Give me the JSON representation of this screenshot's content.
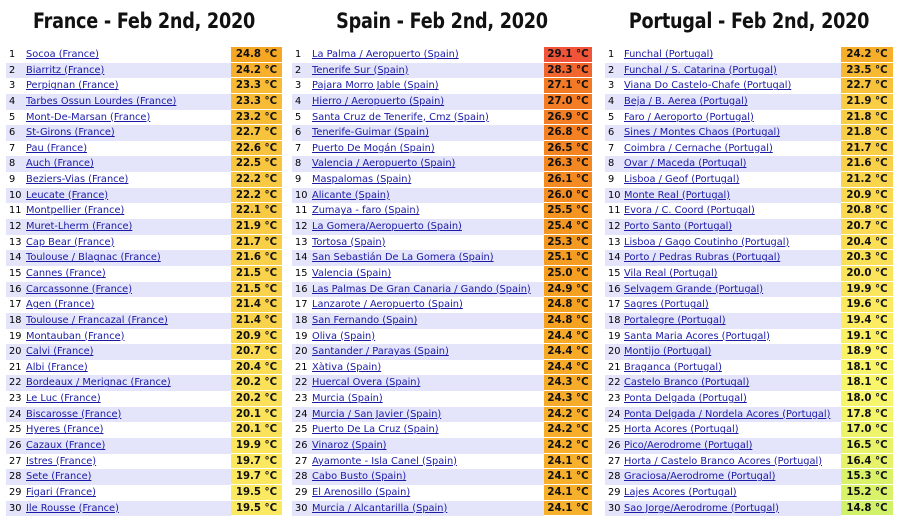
{
  "panels": [
    {
      "title": "France - Feb 2nd, 2020",
      "rows": [
        {
          "rank": "1",
          "name": "Socoa (France)",
          "temp": "24.8 °C",
          "color": "#f5a623"
        },
        {
          "rank": "2",
          "name": "Biarritz (France)",
          "temp": "24.2 °C",
          "color": "#f6b02c"
        },
        {
          "rank": "3",
          "name": "Perpignan (France)",
          "temp": "23.3 °C",
          "color": "#f7bb35"
        },
        {
          "rank": "4",
          "name": "Tarbes Ossun Lourdes (France)",
          "temp": "23.3 °C",
          "color": "#f7bb35"
        },
        {
          "rank": "5",
          "name": "Mont-De-Marsan (France)",
          "temp": "23.2 °C",
          "color": "#f7bc36"
        },
        {
          "rank": "6",
          "name": "St-Girons (France)",
          "temp": "22.7 °C",
          "color": "#f8c33c"
        },
        {
          "rank": "7",
          "name": "Pau (France)",
          "temp": "22.6 °C",
          "color": "#f8c43d"
        },
        {
          "rank": "8",
          "name": "Auch (France)",
          "temp": "22.5 °C",
          "color": "#f8c53e"
        },
        {
          "rank": "9",
          "name": "Beziers-Vias (France)",
          "temp": "22.2 °C",
          "color": "#f8c942"
        },
        {
          "rank": "10",
          "name": "Leucate (France)",
          "temp": "22.2 °C",
          "color": "#f8c942"
        },
        {
          "rank": "11",
          "name": "Montpellier (France)",
          "temp": "22.1 °C",
          "color": "#f8ca43"
        },
        {
          "rank": "12",
          "name": "Muret-Lherm (France)",
          "temp": "21.9 °C",
          "color": "#f9cd45"
        },
        {
          "rank": "13",
          "name": "Cap Bear (France)",
          "temp": "21.7 °C",
          "color": "#f9cf48"
        },
        {
          "rank": "14",
          "name": "Toulouse / Blagnac (France)",
          "temp": "21.6 °C",
          "color": "#f9d049"
        },
        {
          "rank": "15",
          "name": "Cannes (France)",
          "temp": "21.5 °C",
          "color": "#f9d14a"
        },
        {
          "rank": "16",
          "name": "Carcassonne (France)",
          "temp": "21.5 °C",
          "color": "#f9d14a"
        },
        {
          "rank": "17",
          "name": "Agen (France)",
          "temp": "21.4 °C",
          "color": "#f9d24b"
        },
        {
          "rank": "18",
          "name": "Toulouse / Francazal (France)",
          "temp": "21.4 °C",
          "color": "#f9d24b"
        },
        {
          "rank": "19",
          "name": "Montauban (France)",
          "temp": "20.9 °C",
          "color": "#fad950"
        },
        {
          "rank": "20",
          "name": "Calvi (France)",
          "temp": "20.7 °C",
          "color": "#fadb53"
        },
        {
          "rank": "21",
          "name": "Albi (France)",
          "temp": "20.4 °C",
          "color": "#fadf56"
        },
        {
          "rank": "22",
          "name": "Bordeaux / Merignac (France)",
          "temp": "20.2 °C",
          "color": "#fae159"
        },
        {
          "rank": "23",
          "name": "Le Luc (France)",
          "temp": "20.2 °C",
          "color": "#fae159"
        },
        {
          "rank": "24",
          "name": "Biscarosse (France)",
          "temp": "20.1 °C",
          "color": "#fae35a"
        },
        {
          "rank": "25",
          "name": "Hyeres (France)",
          "temp": "20.1 °C",
          "color": "#fae35a"
        },
        {
          "rank": "26",
          "name": "Cazaux (France)",
          "temp": "19.9 °C",
          "color": "#fae55c"
        },
        {
          "rank": "27",
          "name": "Istres (France)",
          "temp": "19.7 °C",
          "color": "#fbe85f"
        },
        {
          "rank": "28",
          "name": "Sete (France)",
          "temp": "19.7 °C",
          "color": "#fbe85f"
        },
        {
          "rank": "29",
          "name": "Figari (France)",
          "temp": "19.5 °C",
          "color": "#fbea61"
        },
        {
          "rank": "30",
          "name": "Ile Rousse (France)",
          "temp": "19.5 °C",
          "color": "#fbea61"
        }
      ]
    },
    {
      "title": "Spain - Feb 2nd, 2020",
      "rows": [
        {
          "rank": "1",
          "name": "La Palma / Aeropuerto (Spain)",
          "temp": "29.1 °C",
          "color": "#f0553a"
        },
        {
          "rank": "2",
          "name": "Tenerife Sur (Spain)",
          "temp": "28.3 °C",
          "color": "#f1652f"
        },
        {
          "rank": "3",
          "name": "Pajara Morro Jable (Spain)",
          "temp": "27.1 °C",
          "color": "#f37a25"
        },
        {
          "rank": "4",
          "name": "Hierro / Aeropuerto (Spain)",
          "temp": "27.0 °C",
          "color": "#f37c24"
        },
        {
          "rank": "5",
          "name": "Santa Cruz de Tenerife, Cmz (Spain)",
          "temp": "26.9 °C",
          "color": "#f37e24"
        },
        {
          "rank": "6",
          "name": "Tenerife-Guimar (Spain)",
          "temp": "26.8 °C",
          "color": "#f38023"
        },
        {
          "rank": "7",
          "name": "Puerto De Mogán (Spain)",
          "temp": "26.5 °C",
          "color": "#f38522"
        },
        {
          "rank": "8",
          "name": "Valencia / Aeropuerto (Spain)",
          "temp": "26.3 °C",
          "color": "#f38822"
        },
        {
          "rank": "9",
          "name": "Maspalomas (Spain)",
          "temp": "26.1 °C",
          "color": "#f48b22"
        },
        {
          "rank": "10",
          "name": "Alicante (Spain)",
          "temp": "26.0 °C",
          "color": "#f48d22"
        },
        {
          "rank": "11",
          "name": "Zumaya - faro (Spain)",
          "temp": "25.5 °C",
          "color": "#f49522"
        },
        {
          "rank": "12",
          "name": "La Gomera/Aeropuerto (Spain)",
          "temp": "25.4 °C",
          "color": "#f49722"
        },
        {
          "rank": "13",
          "name": "Tortosa (Spain)",
          "temp": "25.3 °C",
          "color": "#f49922"
        },
        {
          "rank": "14",
          "name": "San Sebastián De La Gomera (Spain)",
          "temp": "25.1 °C",
          "color": "#f59c22"
        },
        {
          "rank": "15",
          "name": "Valencia (Spain)",
          "temp": "25.0 °C",
          "color": "#f59e22"
        },
        {
          "rank": "16",
          "name": "Las Palmas De Gran Canaria / Gando (Spain)",
          "temp": "24.9 °C",
          "color": "#f5a022"
        },
        {
          "rank": "17",
          "name": "Lanzarote / Aeropuerto (Spain)",
          "temp": "24.8 °C",
          "color": "#f5a223"
        },
        {
          "rank": "18",
          "name": "San Fernando (Spain)",
          "temp": "24.8 °C",
          "color": "#f5a223"
        },
        {
          "rank": "19",
          "name": "Oliva (Spain)",
          "temp": "24.4 °C",
          "color": "#f6aa28"
        },
        {
          "rank": "20",
          "name": "Santander / Parayas (Spain)",
          "temp": "24.4 °C",
          "color": "#f6aa28"
        },
        {
          "rank": "21",
          "name": "Xàtiva (Spain)",
          "temp": "24.4 °C",
          "color": "#f6aa28"
        },
        {
          "rank": "22",
          "name": "Huercal Overa (Spain)",
          "temp": "24.3 °C",
          "color": "#f6ac2a"
        },
        {
          "rank": "23",
          "name": "Murcia (Spain)",
          "temp": "24.3 °C",
          "color": "#f6ac2a"
        },
        {
          "rank": "24",
          "name": "Murcia / San Javier (Spain)",
          "temp": "24.2 °C",
          "color": "#f6ae2b"
        },
        {
          "rank": "25",
          "name": "Puerto De La Cruz (Spain)",
          "temp": "24.2 °C",
          "color": "#f6ae2b"
        },
        {
          "rank": "26",
          "name": "Vinaroz (Spain)",
          "temp": "24.2 °C",
          "color": "#f6ae2b"
        },
        {
          "rank": "27",
          "name": "Ayamonte - Isla Canel (Spain)",
          "temp": "24.1 °C",
          "color": "#f6b02c"
        },
        {
          "rank": "28",
          "name": "Cabo Busto (Spain)",
          "temp": "24.1 °C",
          "color": "#f6b02c"
        },
        {
          "rank": "29",
          "name": "El Arenosillo (Spain)",
          "temp": "24.1 °C",
          "color": "#f6b02c"
        },
        {
          "rank": "30",
          "name": "Murcia / Alcantarilla (Spain)",
          "temp": "24.1 °C",
          "color": "#f6b02c"
        }
      ]
    },
    {
      "title": "Portugal - Feb 2nd, 2020",
      "rows": [
        {
          "rank": "1",
          "name": "Funchal (Portugal)",
          "temp": "24.2 °C",
          "color": "#f6ae2b"
        },
        {
          "rank": "2",
          "name": "Funchal / S. Catarina (Portugal)",
          "temp": "23.5 °C",
          "color": "#f7b932"
        },
        {
          "rank": "3",
          "name": "Viana Do Castelo-Chafe (Portugal)",
          "temp": "22.7 °C",
          "color": "#f8c33c"
        },
        {
          "rank": "4",
          "name": "Beja / B. Aerea (Portugal)",
          "temp": "21.9 °C",
          "color": "#f9cd45"
        },
        {
          "rank": "5",
          "name": "Faro / Aeroporto (Portugal)",
          "temp": "21.8 °C",
          "color": "#f9ce47"
        },
        {
          "rank": "6",
          "name": "Sines / Montes Chaos (Portugal)",
          "temp": "21.8 °C",
          "color": "#f9ce47"
        },
        {
          "rank": "7",
          "name": "Coimbra / Cernache (Portugal)",
          "temp": "21.7 °C",
          "color": "#f9cf48"
        },
        {
          "rank": "8",
          "name": "Ovar / Maceda (Portugal)",
          "temp": "21.6 °C",
          "color": "#f9d049"
        },
        {
          "rank": "9",
          "name": "Lisboa / Geof (Portugal)",
          "temp": "21.2 °C",
          "color": "#f9d54d"
        },
        {
          "rank": "10",
          "name": "Monte Real (Portugal)",
          "temp": "20.9 °C",
          "color": "#fad950"
        },
        {
          "rank": "11",
          "name": "Evora / C. Coord (Portugal)",
          "temp": "20.8 °C",
          "color": "#fada52"
        },
        {
          "rank": "12",
          "name": "Porto Santo (Portugal)",
          "temp": "20.7 °C",
          "color": "#fadb53"
        },
        {
          "rank": "13",
          "name": "Lisboa / Gago Coutinho (Portugal)",
          "temp": "20.4 °C",
          "color": "#fadf56"
        },
        {
          "rank": "14",
          "name": "Porto / Pedras Rubras (Portugal)",
          "temp": "20.3 °C",
          "color": "#fae057"
        },
        {
          "rank": "15",
          "name": "Vila Real (Portugal)",
          "temp": "20.0 °C",
          "color": "#fae45b"
        },
        {
          "rank": "16",
          "name": "Selvagem Grande (Portugal)",
          "temp": "19.9 °C",
          "color": "#fae55c"
        },
        {
          "rank": "17",
          "name": "Sagres (Portugal)",
          "temp": "19.6 °C",
          "color": "#fbe960"
        },
        {
          "rank": "18",
          "name": "Portalegre (Portugal)",
          "temp": "19.4 °C",
          "color": "#fbec63"
        },
        {
          "rank": "19",
          "name": "Santa Maria Acores (Portugal)",
          "temp": "19.1 °C",
          "color": "#fbef66"
        },
        {
          "rank": "20",
          "name": "Montijo (Portugal)",
          "temp": "18.9 °C",
          "color": "#fbf268"
        },
        {
          "rank": "21",
          "name": "Braganca (Portugal)",
          "temp": "18.1 °C",
          "color": "#f8f56b"
        },
        {
          "rank": "22",
          "name": "Castelo Branco (Portugal)",
          "temp": "18.1 °C",
          "color": "#f8f56b"
        },
        {
          "rank": "23",
          "name": "Ponta Delgada (Portugal)",
          "temp": "18.0 °C",
          "color": "#f7f56b"
        },
        {
          "rank": "24",
          "name": "Ponta Delgada / Nordela Acores (Portugal)",
          "temp": "17.8 °C",
          "color": "#f4f56b"
        },
        {
          "rank": "25",
          "name": "Horta Acores (Portugal)",
          "temp": "17.0 °C",
          "color": "#eef46a"
        },
        {
          "rank": "26",
          "name": "Pico/Aerodrome (Portugal)",
          "temp": "16.5 °C",
          "color": "#e8f36a"
        },
        {
          "rank": "27",
          "name": "Horta / Castelo Branco Acores (Portugal)",
          "temp": "16.4 °C",
          "color": "#e6f36a"
        },
        {
          "rank": "28",
          "name": "Graciosa/Aerodrome (Portugal)",
          "temp": "15.3 °C",
          "color": "#d9f26a"
        },
        {
          "rank": "29",
          "name": "Lajes Acores (Portugal)",
          "temp": "15.2 °C",
          "color": "#d8f26a"
        },
        {
          "rank": "30",
          "name": "Sao Jorge/Aerodrome (Portugal)",
          "temp": "14.8 °C",
          "color": "#d2f16a"
        }
      ]
    }
  ]
}
